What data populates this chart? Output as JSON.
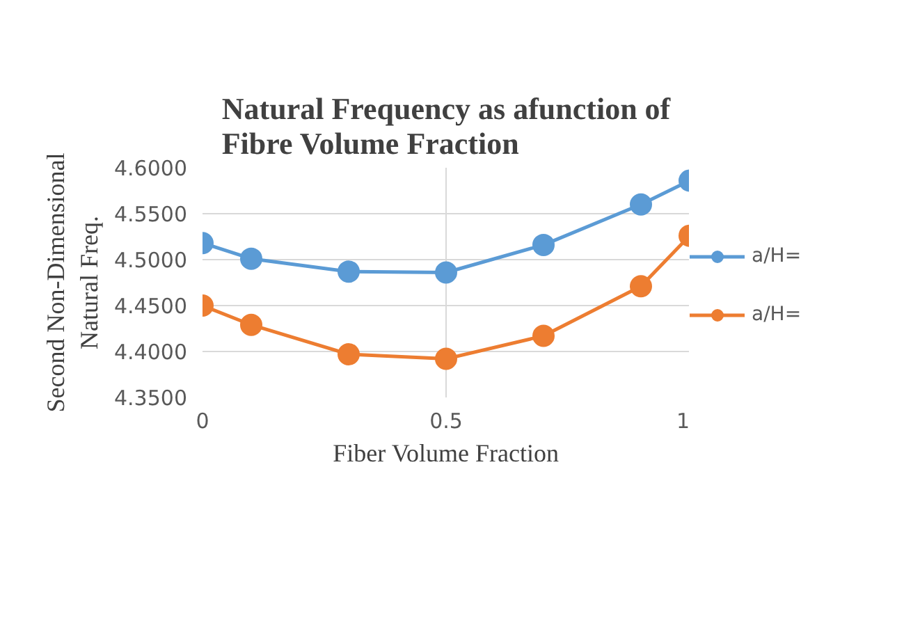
{
  "chart_data": {
    "type": "line",
    "title": "Natural Frequency as afunction of Fibre Volume Fraction",
    "xlabel": "Fiber Volume Fraction",
    "ylabel": "Second Non-Dimensional Natural Freq.",
    "x": [
      0,
      0.1,
      0.3,
      0.5,
      0.7,
      0.9,
      1
    ],
    "series": [
      {
        "name": "a/H=",
        "color": "#5b9bd5",
        "values": [
          4.518,
          4.501,
          4.487,
          4.486,
          4.516,
          4.56,
          4.586
        ]
      },
      {
        "name": "a/H=",
        "color": "#ed7d31",
        "values": [
          4.45,
          4.429,
          4.397,
          4.392,
          4.417,
          4.471,
          4.526
        ]
      }
    ],
    "xlim": [
      0,
      1
    ],
    "xticks": [
      0,
      0.5,
      1
    ],
    "ylim": [
      4.35,
      4.6
    ],
    "yticks": [
      {
        "value": 4.35,
        "label": "4.3500"
      },
      {
        "value": 4.4,
        "label": "4.4000"
      },
      {
        "value": 4.45,
        "label": "4.4500"
      },
      {
        "value": 4.5,
        "label": "4.5000"
      },
      {
        "value": 4.55,
        "label": "4.5500"
      },
      {
        "value": 4.6,
        "label": "4.6000"
      }
    ],
    "grid": true,
    "legend": "right",
    "marker": "circle",
    "line_style": "solid"
  }
}
